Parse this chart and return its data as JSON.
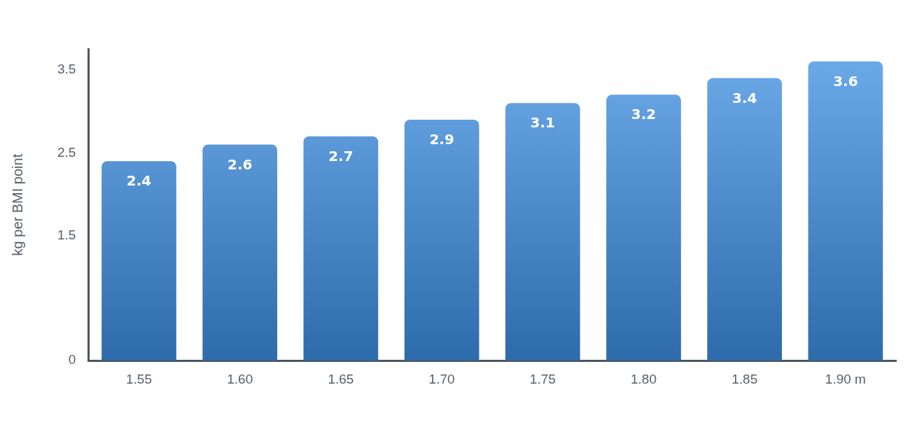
{
  "chart_data": {
    "type": "bar",
    "ylabel": "kg per BMI point",
    "categories": [
      "1.55",
      "1.60",
      "1.65",
      "1.70",
      "1.75",
      "1.80",
      "1.85",
      "1.90 m"
    ],
    "values": [
      2.4,
      2.6,
      2.7,
      2.9,
      3.1,
      3.2,
      3.4,
      3.6
    ],
    "color": "#3d8fe3",
    "ylim": [
      0,
      3.75
    ],
    "yticks": [
      0,
      1.5,
      2.5,
      3.5
    ],
    "data_labels": true,
    "grid": false,
    "legend": false
  }
}
